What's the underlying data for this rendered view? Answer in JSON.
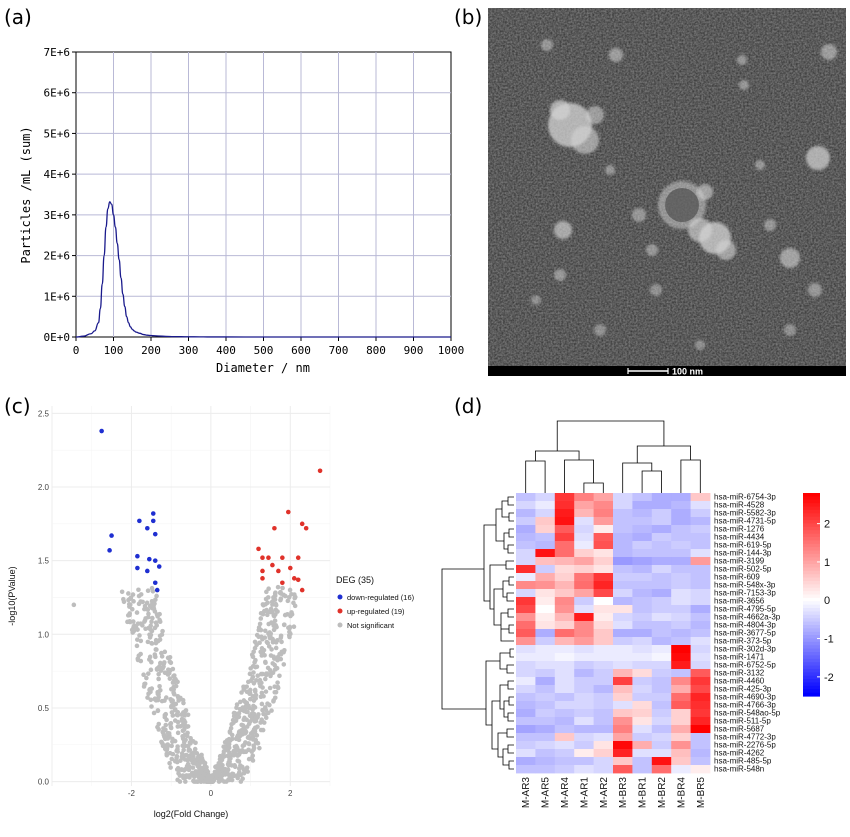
{
  "panels": {
    "a": "(a)",
    "b": "(b)",
    "c": "(c)",
    "d": "(d)"
  },
  "chart_data": [
    {
      "panel": "a",
      "type": "line",
      "xlabel": "Diameter / nm",
      "ylabel": "Particles /mL (sum)",
      "xlim": [
        0,
        1000
      ],
      "ylim": [
        0,
        7000000
      ],
      "xticks": [
        "0",
        "100",
        "200",
        "300",
        "400",
        "500",
        "600",
        "700",
        "800",
        "900",
        "1000"
      ],
      "yticks": [
        "0E+0",
        "1E+6",
        "2E+6",
        "3E+6",
        "4E+6",
        "5E+6",
        "6E+6",
        "7E+6"
      ],
      "grid": true,
      "color": "#1a1a8c",
      "series": [
        {
          "x": [
            0,
            20,
            40,
            50,
            60,
            65,
            70,
            75,
            80,
            85,
            90,
            95,
            100,
            105,
            110,
            115,
            120,
            125,
            130,
            135,
            140,
            145,
            150,
            155,
            160,
            170,
            180,
            190,
            200,
            220,
            240,
            260,
            280,
            300,
            330,
            350,
            400,
            500,
            700,
            1000
          ],
          "y": [
            0,
            20000,
            80000,
            150000,
            350000,
            700000,
            1300000,
            2000000,
            2700000,
            3150000,
            3320000,
            3260000,
            3000000,
            2700000,
            2300000,
            1900000,
            1450000,
            1050000,
            750000,
            500000,
            350000,
            250000,
            190000,
            150000,
            120000,
            90000,
            60000,
            45000,
            35000,
            25000,
            15000,
            10000,
            8000,
            5000,
            3000,
            2000,
            1000,
            500,
            0,
            0
          ]
        }
      ]
    },
    {
      "panel": "c",
      "type": "scatter",
      "xlabel": "log2(Fold Change)",
      "ylabel": "-log10(PValue)",
      "xlim": [
        -4.0,
        3.0
      ],
      "ylim": [
        -0.03,
        2.55
      ],
      "xticks": [
        -2,
        0,
        2
      ],
      "yticks": [
        "0.0",
        "0.5",
        "1.0",
        "1.5",
        "2.0",
        "2.5"
      ],
      "yticks_values": [
        0,
        0.5,
        1.0,
        1.5,
        2.0,
        2.5
      ],
      "grid": true,
      "legend": {
        "title": "DEG (35)",
        "position": "right",
        "entries": [
          {
            "label": "down-regulated (16)",
            "color": "#1f2fd1"
          },
          {
            "label": "up-regulated (19)",
            "color": "#e0322a"
          },
          {
            "label": "Not significant",
            "color": "#bdbdbd"
          }
        ]
      },
      "down": [
        [
          -2.75,
          2.38
        ],
        [
          -2.5,
          1.67
        ],
        [
          -2.55,
          1.57
        ],
        [
          -1.8,
          1.77
        ],
        [
          -1.45,
          1.82
        ],
        [
          -1.6,
          1.72
        ],
        [
          -1.4,
          1.68
        ],
        [
          -1.45,
          1.77
        ],
        [
          -1.85,
          1.53
        ],
        [
          -1.55,
          1.51
        ],
        [
          -1.4,
          1.5
        ],
        [
          -1.3,
          1.46
        ],
        [
          -1.85,
          1.45
        ],
        [
          -1.6,
          1.43
        ],
        [
          -1.4,
          1.35
        ],
        [
          -1.35,
          1.3
        ]
      ],
      "up": [
        [
          2.75,
          2.11
        ],
        [
          1.95,
          1.83
        ],
        [
          2.3,
          1.75
        ],
        [
          2.4,
          1.72
        ],
        [
          1.6,
          1.72
        ],
        [
          1.2,
          1.58
        ],
        [
          1.3,
          1.52
        ],
        [
          1.45,
          1.52
        ],
        [
          1.8,
          1.52
        ],
        [
          2.2,
          1.52
        ],
        [
          1.55,
          1.47
        ],
        [
          1.3,
          1.43
        ],
        [
          1.7,
          1.43
        ],
        [
          2.0,
          1.45
        ],
        [
          1.3,
          1.38
        ],
        [
          1.8,
          1.35
        ],
        [
          2.1,
          1.38
        ],
        [
          2.2,
          1.37
        ],
        [
          2.3,
          1.3
        ]
      ],
      "ns_outlier": [
        [
          -3.45,
          1.2
        ]
      ]
    },
    {
      "panel": "d",
      "type": "heatmap",
      "columns": [
        "M-AR3",
        "M-AR5",
        "M-AR4",
        "M-AR1",
        "M-AR2",
        "M-BR3",
        "M-BR1",
        "M-BR2",
        "M-BR4",
        "M-BR5"
      ],
      "rows": [
        "hsa-miR-6754-3p",
        "hsa-miR-4528",
        "hsa-miR-5582-3p",
        "hsa-miR-4731-5p",
        "hsa-miR-1276",
        "hsa-miR-4434",
        "hsa-miR-619-5p",
        "hsa-miR-144-3p",
        "hsa-miR-3199",
        "hsa-miR-502-5p",
        "hsa-miR-609",
        "hsa-miR-548x-3p",
        "hsa-miR-7153-3p",
        "hsa-miR-3656",
        "hsa-miR-4795-5p",
        "hsa-miR-4662a-3p",
        "hsa-miR-4804-3p",
        "hsa-miR-3677-5p",
        "hsa-miR-373-5p",
        "hsa-miR-302d-3p",
        "hsa-miR-1471",
        "hsa-miR-6752-5p",
        "hsa-miR-3132",
        "hsa-miR-4460",
        "hsa-miR-425-3p",
        "hsa-miR-4690-3p",
        "hsa-miR-4766-3p",
        "hsa-miR-548ao-5p",
        "hsa-miR-511-5p",
        "hsa-miR-5687",
        "hsa-miR-4772-3p",
        "hsa-miR-2276-5p",
        "hsa-miR-4262",
        "hsa-miR-485-5p",
        "hsa-miR-548n"
      ],
      "color_scale": {
        "min": -2.5,
        "max": 2.8,
        "low": "#0000ff",
        "mid": "#ffffff",
        "high": "#ff0000"
      },
      "colorbar_ticks": [
        "2",
        "1",
        "0",
        "-1",
        "-2"
      ],
      "colorbar_values": [
        2,
        1,
        0,
        -1,
        -2
      ],
      "values": [
        [
          -0.6,
          -0.4,
          2.2,
          1.4,
          1.0,
          -0.4,
          -0.6,
          -0.8,
          -0.8,
          0.6
        ],
        [
          -0.4,
          -0.2,
          2.3,
          1.0,
          1.3,
          -0.4,
          -0.8,
          -0.8,
          -0.7,
          -0.3
        ],
        [
          -0.7,
          -0.4,
          2.5,
          0.8,
          1.4,
          -0.6,
          -0.7,
          -0.5,
          -0.8,
          -0.5
        ],
        [
          -0.5,
          0.6,
          2.6,
          -0.3,
          1.1,
          -0.6,
          -0.6,
          -0.5,
          -0.8,
          -0.7
        ],
        [
          -0.8,
          0.5,
          1.8,
          -0.4,
          0.2,
          -0.6,
          -0.7,
          -0.8,
          -0.6,
          -0.5
        ],
        [
          -0.7,
          -0.6,
          2.1,
          -0.3,
          1.8,
          -0.7,
          -0.8,
          -0.5,
          -0.6,
          -0.6
        ],
        [
          -0.6,
          -0.7,
          1.6,
          -0.2,
          1.9,
          -0.7,
          -0.5,
          -0.6,
          -0.5,
          -0.6
        ],
        [
          -0.4,
          2.6,
          1.6,
          0.5,
          0.3,
          -0.7,
          -0.6,
          -0.6,
          -0.6,
          -0.3
        ],
        [
          -0.4,
          0.7,
          0.8,
          1.0,
          0.5,
          -1.0,
          -0.9,
          -0.8,
          -0.8,
          1.1
        ],
        [
          2.3,
          -0.5,
          0.4,
          0.5,
          0.3,
          -0.6,
          -0.7,
          -0.4,
          -0.6,
          -0.6
        ],
        [
          -0.2,
          0.9,
          0.5,
          1.5,
          2.2,
          -0.5,
          -0.5,
          -0.6,
          -0.5,
          -0.6
        ],
        [
          1.3,
          1.2,
          0.8,
          1.6,
          2.4,
          -0.6,
          -0.6,
          -0.6,
          -0.5,
          -0.6
        ],
        [
          -0.4,
          0.3,
          0.6,
          1.0,
          2.0,
          -0.4,
          -0.7,
          -0.8,
          -0.3,
          -0.4
        ],
        [
          2.2,
          0.2,
          1.3,
          -0.5,
          0.0,
          -0.7,
          -0.6,
          -0.5,
          -0.3,
          -0.4
        ],
        [
          2.0,
          0.0,
          1.2,
          -0.3,
          0.3,
          0.3,
          -0.6,
          -0.5,
          -0.5,
          -0.8
        ],
        [
          1.2,
          0.2,
          0.8,
          2.5,
          0.2,
          -0.4,
          -0.5,
          -0.3,
          -0.4,
          -0.6
        ],
        [
          1.6,
          0.3,
          0.5,
          1.3,
          0.4,
          -0.3,
          -0.6,
          -0.6,
          -0.5,
          -0.7
        ],
        [
          1.8,
          -0.8,
          1.6,
          1.3,
          0.6,
          -0.8,
          -0.8,
          -0.6,
          -0.7,
          -0.6
        ],
        [
          1.2,
          -0.5,
          0.8,
          1.1,
          0.6,
          -0.5,
          -0.4,
          -0.7,
          -0.6,
          -0.3
        ],
        [
          -0.3,
          -0.2,
          -0.2,
          -0.3,
          -0.2,
          -0.2,
          -0.3,
          -0.2,
          2.9,
          -0.4
        ],
        [
          -0.2,
          -0.2,
          -0.1,
          -0.2,
          -0.2,
          -0.2,
          -0.2,
          -0.1,
          2.7,
          -0.3
        ],
        [
          -0.4,
          -0.3,
          -0.3,
          -0.5,
          -0.4,
          -0.3,
          -0.4,
          -0.4,
          2.5,
          -0.4
        ],
        [
          -0.4,
          -0.5,
          -0.3,
          -0.7,
          -0.5,
          0.8,
          0.4,
          -0.5,
          -0.6,
          1.8
        ],
        [
          -0.2,
          -0.8,
          -0.3,
          -0.5,
          -0.5,
          2.1,
          -0.5,
          -0.6,
          1.3,
          2.2
        ],
        [
          -0.4,
          -0.6,
          -0.3,
          -0.5,
          -0.7,
          0.7,
          -0.4,
          -0.6,
          0.9,
          2.0
        ],
        [
          -0.6,
          -0.5,
          -0.6,
          -0.4,
          -0.5,
          0.5,
          -0.5,
          -0.5,
          1.6,
          2.4
        ],
        [
          -0.7,
          -0.6,
          -0.4,
          -0.4,
          -0.5,
          -0.3,
          0.4,
          -0.6,
          1.8,
          2.3
        ],
        [
          -0.8,
          -0.5,
          -0.6,
          -0.5,
          -0.6,
          0.6,
          0.5,
          -0.5,
          0.5,
          2.2
        ],
        [
          -0.6,
          -0.6,
          -0.7,
          -0.3,
          -0.6,
          1.2,
          0.3,
          -0.4,
          0.5,
          2.4
        ],
        [
          -0.9,
          -0.8,
          -0.6,
          -0.7,
          -0.7,
          1.4,
          -0.3,
          -0.6,
          0.9,
          2.8
        ],
        [
          -0.6,
          -0.6,
          0.6,
          -0.4,
          -0.3,
          1.0,
          -0.5,
          -0.4,
          0.5,
          -0.6
        ],
        [
          -0.5,
          -0.4,
          -0.3,
          -0.5,
          0.3,
          2.7,
          0.9,
          -0.5,
          1.2,
          -0.6
        ],
        [
          -0.3,
          -0.6,
          -0.5,
          0.2,
          0.5,
          2.4,
          -0.3,
          -0.3,
          0.7,
          -0.7
        ],
        [
          -0.8,
          -0.7,
          -0.6,
          -0.6,
          -0.4,
          0.6,
          -0.6,
          2.6,
          0.6,
          -0.6
        ],
        [
          -0.6,
          -0.6,
          -0.5,
          -0.3,
          -0.4,
          1.8,
          -0.6,
          1.6,
          -0.2,
          0.2
        ]
      ]
    }
  ],
  "micrograph": {
    "scale_bar_label": "100 nm"
  }
}
